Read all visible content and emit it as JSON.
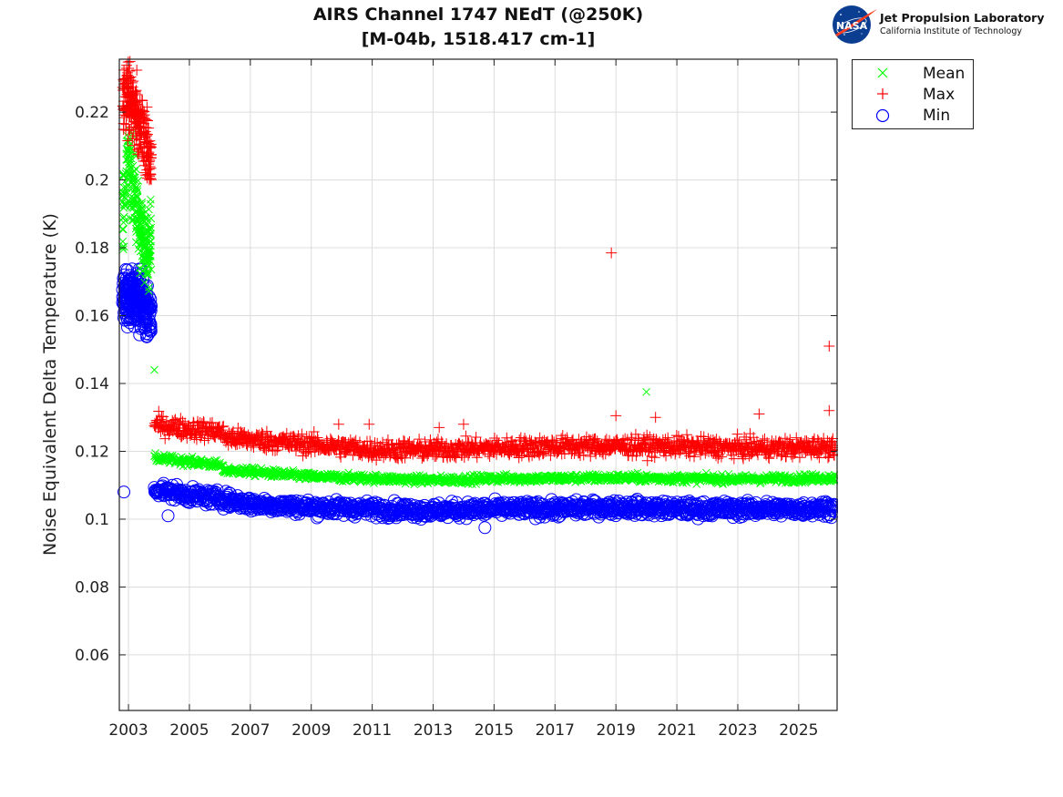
{
  "header": {
    "title_line1": "AIRS Channel 1747 NEdT (@250K)",
    "title_line2": "[M-04b, 1518.417 cm-1]",
    "logo": {
      "org_name": "Jet Propulsion Laboratory",
      "org_sub": "California Institute of Technology",
      "badge_text": "NASA"
    }
  },
  "colors": {
    "mean": "#00ff00",
    "max": "#ff0000",
    "min": "#0000ff",
    "grid": "#dcdcdc",
    "axis": "#222222"
  },
  "chart_data": {
    "type": "scatter",
    "title": "AIRS Channel 1747 NEdT (@250K) [M-04b, 1518.417 cm-1]",
    "xlabel": "",
    "ylabel": "Noise Equivalent Delta Temperature (K)",
    "xlim": [
      2002.7,
      2026.26
    ],
    "ylim": [
      0.0436,
      0.2356
    ],
    "grid": true,
    "legend_position": "outside-top-right",
    "x_ticks": [
      2003,
      2005,
      2007,
      2009,
      2011,
      2013,
      2015,
      2017,
      2019,
      2021,
      2023,
      2025
    ],
    "x_tick_labels": [
      "2003",
      "2005",
      "2007",
      "2009",
      "2011",
      "2013",
      "2015",
      "2017",
      "2019",
      "2021",
      "2023",
      "2025"
    ],
    "y_ticks": [
      0.06,
      0.08,
      0.1,
      0.12,
      0.14,
      0.16,
      0.18,
      0.2,
      0.22
    ],
    "y_tick_labels": [
      "0.06",
      "0.08",
      "0.1",
      "0.12",
      "0.14",
      "0.16",
      "0.18",
      "0.2",
      "0.22"
    ],
    "series": [
      {
        "name": "Mean",
        "marker": "x",
        "trend": [
          [
            2002.8,
            0.19
          ],
          [
            2003.0,
            0.205
          ],
          [
            2003.4,
            0.185
          ],
          [
            2003.75,
            0.18
          ],
          [
            2003.85,
            0.118
          ],
          [
            2005.0,
            0.117
          ],
          [
            2006.0,
            0.116
          ],
          [
            2006.1,
            0.1145
          ],
          [
            2007.0,
            0.114
          ],
          [
            2009.0,
            0.1125
          ],
          [
            2011.0,
            0.112
          ],
          [
            2013.0,
            0.1115
          ],
          [
            2015.0,
            0.112
          ],
          [
            2017.0,
            0.112
          ],
          [
            2019.0,
            0.1122
          ],
          [
            2021.0,
            0.112
          ],
          [
            2023.0,
            0.1118
          ],
          [
            2025.0,
            0.112
          ],
          [
            2026.2,
            0.1122
          ]
        ],
        "outliers": [
          [
            2003.85,
            0.144
          ],
          [
            2020.0,
            0.1375
          ]
        ]
      },
      {
        "name": "Max",
        "marker": "+",
        "trend": [
          [
            2002.8,
            0.222
          ],
          [
            2003.0,
            0.225
          ],
          [
            2003.4,
            0.215
          ],
          [
            2003.75,
            0.205
          ],
          [
            2003.85,
            0.128
          ],
          [
            2005.0,
            0.1265
          ],
          [
            2006.0,
            0.126
          ],
          [
            2006.2,
            0.124
          ],
          [
            2007.0,
            0.1235
          ],
          [
            2009.0,
            0.122
          ],
          [
            2011.0,
            0.1205
          ],
          [
            2013.0,
            0.1205
          ],
          [
            2015.0,
            0.121
          ],
          [
            2017.0,
            0.1215
          ],
          [
            2019.0,
            0.1215
          ],
          [
            2021.0,
            0.1215
          ],
          [
            2023.0,
            0.121
          ],
          [
            2025.0,
            0.121
          ],
          [
            2026.2,
            0.1215
          ]
        ],
        "outliers": [
          [
            2018.85,
            0.1785
          ],
          [
            2026.0,
            0.151
          ],
          [
            2026.0,
            0.132
          ],
          [
            2023.7,
            0.131
          ],
          [
            2019.0,
            0.1305
          ],
          [
            2020.3,
            0.13
          ],
          [
            2010.9,
            0.128
          ],
          [
            2009.9,
            0.128
          ],
          [
            2014.0,
            0.128
          ],
          [
            2013.2,
            0.127
          ]
        ]
      },
      {
        "name": "Min",
        "marker": "o",
        "trend": [
          [
            2002.8,
            0.165
          ],
          [
            2003.0,
            0.166
          ],
          [
            2003.4,
            0.165
          ],
          [
            2003.75,
            0.158
          ],
          [
            2003.85,
            0.109
          ],
          [
            2005.0,
            0.107
          ],
          [
            2006.0,
            0.106
          ],
          [
            2007.0,
            0.1045
          ],
          [
            2009.0,
            0.1035
          ],
          [
            2011.0,
            0.103
          ],
          [
            2013.0,
            0.1025
          ],
          [
            2015.0,
            0.103
          ],
          [
            2017.0,
            0.103
          ],
          [
            2019.0,
            0.1035
          ],
          [
            2021.0,
            0.103
          ],
          [
            2023.0,
            0.103
          ],
          [
            2025.0,
            0.103
          ],
          [
            2026.2,
            0.1035
          ]
        ],
        "outliers": [
          [
            2002.85,
            0.108
          ],
          [
            2004.3,
            0.101
          ],
          [
            2014.7,
            0.0975
          ]
        ]
      }
    ]
  }
}
